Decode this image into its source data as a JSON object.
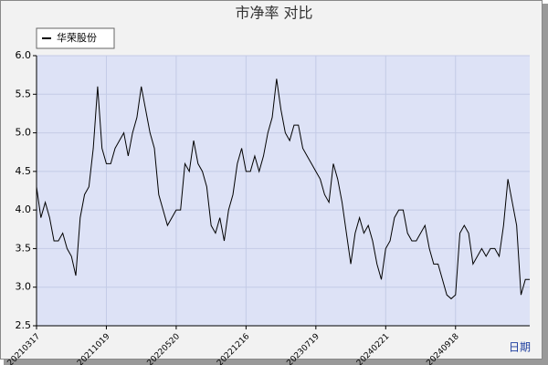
{
  "chart_data": {
    "type": "line",
    "title": "市净率  对比",
    "x_label": "日期",
    "categories": [
      "20210317",
      null,
      null,
      null,
      null,
      null,
      null,
      null,
      null,
      null,
      null,
      null,
      null,
      null,
      null,
      null,
      "20211019",
      null,
      null,
      null,
      null,
      null,
      null,
      null,
      null,
      null,
      null,
      null,
      null,
      null,
      null,
      null,
      "20220520",
      null,
      null,
      null,
      null,
      null,
      null,
      null,
      null,
      null,
      null,
      null,
      null,
      null,
      null,
      null,
      "20221216",
      null,
      null,
      null,
      null,
      null,
      null,
      null,
      null,
      null,
      null,
      null,
      null,
      null,
      null,
      null,
      "20230719",
      null,
      null,
      null,
      null,
      null,
      null,
      null,
      null,
      null,
      null,
      null,
      null,
      null,
      null,
      null,
      "20240221",
      null,
      null,
      null,
      null,
      null,
      null,
      null,
      null,
      null,
      null,
      null,
      null,
      null,
      null,
      null,
      "20240918",
      null,
      null,
      null,
      null,
      null,
      null,
      null,
      null,
      null,
      null,
      null,
      null,
      null,
      null,
      null,
      null,
      null
    ],
    "series": [
      {
        "name": "华荣股份",
        "color": "#000000",
        "values": [
          4.3,
          3.9,
          4.1,
          3.9,
          3.6,
          3.6,
          3.7,
          3.5,
          3.4,
          3.15,
          3.9,
          4.2,
          4.3,
          4.8,
          5.6,
          4.8,
          4.6,
          4.6,
          4.8,
          4.9,
          5.0,
          4.7,
          5.0,
          5.2,
          5.6,
          5.3,
          5.0,
          4.8,
          4.2,
          4.0,
          3.8,
          3.9,
          4.0,
          4.0,
          4.6,
          4.5,
          4.9,
          4.6,
          4.5,
          4.3,
          3.8,
          3.7,
          3.9,
          3.6,
          4.0,
          4.2,
          4.6,
          4.8,
          4.5,
          4.5,
          4.7,
          4.5,
          4.7,
          5.0,
          5.2,
          5.7,
          5.3,
          5.0,
          4.9,
          5.1,
          5.1,
          4.8,
          4.7,
          4.6,
          4.5,
          4.4,
          4.2,
          4.1,
          4.6,
          4.4,
          4.1,
          3.7,
          3.3,
          3.7,
          3.9,
          3.7,
          3.8,
          3.6,
          3.3,
          3.1,
          3.5,
          3.6,
          3.9,
          4.0,
          4.0,
          3.7,
          3.6,
          3.6,
          3.7,
          3.8,
          3.5,
          3.3,
          3.3,
          3.1,
          2.9,
          2.85,
          2.9,
          3.7,
          3.8,
          3.7,
          3.3,
          3.4,
          3.5,
          3.4,
          3.5,
          3.5,
          3.4,
          3.8,
          4.4,
          4.1,
          3.8,
          2.9,
          3.1,
          3.1
        ]
      }
    ],
    "ylim": [
      2.5,
      6.0
    ],
    "yticks": [
      2.5,
      {
        "value": 3,
        "label": "3.0"
      },
      3.5,
      {
        "value": 4,
        "label": "4.0"
      },
      4.5,
      {
        "value": 5,
        "label": "5.0"
      },
      5.5,
      {
        "value": 6,
        "label": "6.0"
      }
    ],
    "grid": true
  }
}
